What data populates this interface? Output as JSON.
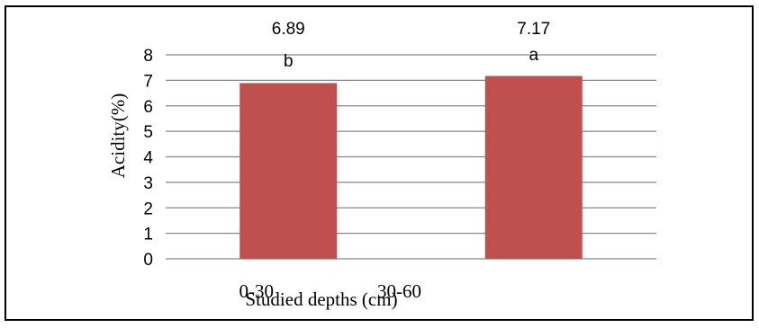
{
  "chart_data": {
    "type": "bar",
    "categories": [
      "0-30",
      "30-60"
    ],
    "values": [
      6.89,
      7.17
    ],
    "value_labels": [
      "6.89",
      "7.17"
    ],
    "group_letters": [
      "b",
      "a"
    ],
    "xlabel": "Studied depths (cm)",
    "ylabel": "Acidity(%)",
    "ylim": [
      0,
      8
    ],
    "yticks": [
      "0",
      "1",
      "2",
      "3",
      "4",
      "5",
      "6",
      "7",
      "8"
    ],
    "grid": true,
    "legend": "none",
    "bar_color": "#C0504D",
    "grid_color": "#868686"
  }
}
